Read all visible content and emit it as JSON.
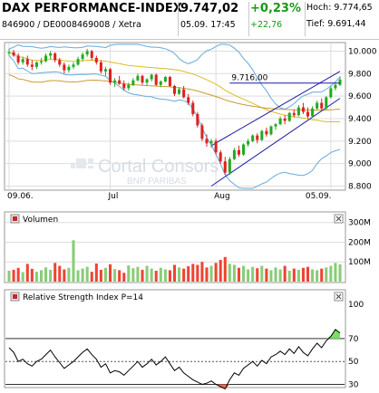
{
  "header": {
    "title": "DAX PERFORMANCE-INDEX",
    "subtitle": "846900 / DE0008469008 / Xetra",
    "price": "9.747,02",
    "datetime": "05.09. 17:45",
    "change_pct": "+0,23%",
    "change_abs": "+22,76",
    "high_label": "Hoch: 9.774,65",
    "low_label": "Tief: 9.691,44"
  },
  "watermark": {
    "brand": "Cortal Consors",
    "sub": "BNP PARIBAS"
  },
  "colors": {
    "up": "#22aa22",
    "down": "#dd2222",
    "volume_up": "#88cc77",
    "volume_down": "#ee4433",
    "bollinger": "#66aadd",
    "ma_short": "#ddbb22",
    "ma_long": "#cc9933",
    "channel": "#1a1aaa",
    "resistance": "#1a1aaa",
    "rsi_line": "#000000",
    "rsi_over": "#77dd66",
    "rsi_under": "#ee6655",
    "grid": "#dddddd"
  },
  "chart_data": [
    {
      "type": "candlestick",
      "title": "DAX PERFORMANCE-INDEX",
      "x_tick_labels": [
        "09.06.",
        "Jul",
        "Aug",
        "05.09."
      ],
      "y_tick_labels": [
        "10.000",
        "9.800",
        "9.600",
        "9.400",
        "9.200",
        "9.000",
        "8.800"
      ],
      "ylim": [
        8780,
        10060
      ],
      "annotation": "9.716,00",
      "resistance_level": 9716,
      "series": [
        {
          "name": "DAX",
          "ohlc": [
            [
              9980,
              10020,
              9960,
              9990
            ],
            [
              9990,
              10010,
              9950,
              9960
            ],
            [
              9960,
              9980,
              9880,
              9900
            ],
            [
              9900,
              9950,
              9880,
              9930
            ],
            [
              9930,
              9960,
              9860,
              9880
            ],
            [
              9880,
              9920,
              9830,
              9860
            ],
            [
              9860,
              9910,
              9840,
              9900
            ],
            [
              9900,
              9940,
              9880,
              9910
            ],
            [
              9910,
              9980,
              9900,
              9960
            ],
            [
              9960,
              10000,
              9930,
              9980
            ],
            [
              9980,
              9990,
              9900,
              9920
            ],
            [
              9920,
              9940,
              9860,
              9880
            ],
            [
              9880,
              9900,
              9800,
              9830
            ],
            [
              9830,
              9880,
              9810,
              9860
            ],
            [
              9860,
              9900,
              9840,
              9880
            ],
            [
              9880,
              9950,
              9870,
              9930
            ],
            [
              9930,
              9990,
              9910,
              9970
            ],
            [
              9970,
              10020,
              9950,
              10000
            ],
            [
              10000,
              10010,
              9920,
              9940
            ],
            [
              9940,
              9960,
              9880,
              9900
            ],
            [
              9900,
              9920,
              9800,
              9820
            ],
            [
              9820,
              9860,
              9780,
              9840
            ],
            [
              9840,
              9850,
              9700,
              9720
            ],
            [
              9720,
              9760,
              9680,
              9740
            ],
            [
              9740,
              9780,
              9700,
              9710
            ],
            [
              9710,
              9740,
              9650,
              9670
            ],
            [
              9670,
              9720,
              9650,
              9700
            ],
            [
              9700,
              9760,
              9690,
              9740
            ],
            [
              9740,
              9800,
              9730,
              9780
            ],
            [
              9780,
              9790,
              9700,
              9720
            ],
            [
              9720,
              9760,
              9690,
              9750
            ],
            [
              9750,
              9800,
              9730,
              9790
            ],
            [
              9790,
              9800,
              9690,
              9700
            ],
            [
              9700,
              9740,
              9680,
              9730
            ],
            [
              9730,
              9780,
              9720,
              9770
            ],
            [
              9770,
              9780,
              9680,
              9690
            ],
            [
              9690,
              9700,
              9600,
              9620
            ],
            [
              9620,
              9680,
              9610,
              9660
            ],
            [
              9660,
              9690,
              9580,
              9590
            ],
            [
              9590,
              9620,
              9520,
              9540
            ],
            [
              9540,
              9560,
              9420,
              9440
            ],
            [
              9440,
              9460,
              9320,
              9340
            ],
            [
              9340,
              9360,
              9200,
              9220
            ],
            [
              9220,
              9260,
              9150,
              9180
            ],
            [
              9180,
              9220,
              9140,
              9200
            ],
            [
              9200,
              9220,
              9080,
              9100
            ],
            [
              9100,
              9120,
              9000,
              9020
            ],
            [
              9020,
              9060,
              8900,
              8920
            ],
            [
              8920,
              9060,
              8900,
              9040
            ],
            [
              9040,
              9140,
              9030,
              9120
            ],
            [
              9120,
              9160,
              9060,
              9080
            ],
            [
              9080,
              9180,
              9070,
              9170
            ],
            [
              9170,
              9220,
              9150,
              9200
            ],
            [
              9200,
              9260,
              9190,
              9250
            ],
            [
              9250,
              9270,
              9180,
              9210
            ],
            [
              9210,
              9300,
              9200,
              9290
            ],
            [
              9290,
              9320,
              9240,
              9260
            ],
            [
              9260,
              9340,
              9250,
              9330
            ],
            [
              9330,
              9360,
              9300,
              9350
            ],
            [
              9350,
              9420,
              9340,
              9400
            ],
            [
              9400,
              9430,
              9350,
              9380
            ],
            [
              9380,
              9460,
              9370,
              9450
            ],
            [
              9450,
              9480,
              9410,
              9430
            ],
            [
              9430,
              9520,
              9420,
              9500
            ],
            [
              9500,
              9540,
              9440,
              9460
            ],
            [
              9460,
              9500,
              9400,
              9420
            ],
            [
              9420,
              9510,
              9410,
              9490
            ],
            [
              9490,
              9560,
              9480,
              9540
            ],
            [
              9540,
              9580,
              9470,
              9490
            ],
            [
              9490,
              9600,
              9480,
              9590
            ],
            [
              9590,
              9690,
              9580,
              9670
            ],
            [
              9670,
              9720,
              9650,
              9700
            ],
            [
              9700,
              9775,
              9690,
              9747
            ]
          ]
        },
        {
          "name": "Bollinger upper"
        },
        {
          "name": "Bollinger lower"
        },
        {
          "name": "MA short"
        },
        {
          "name": "MA long"
        }
      ]
    },
    {
      "type": "bar",
      "title": "Volumen",
      "y_tick_labels": [
        "300M",
        "200M",
        "100M"
      ],
      "ylim": [
        0,
        340
      ],
      "series": [
        {
          "name": "Volumen",
          "values": [
            55,
            60,
            70,
            48,
            90,
            65,
            50,
            58,
            72,
            60,
            95,
            80,
            62,
            70,
            210,
            58,
            66,
            75,
            50,
            92,
            60,
            70,
            88,
            64,
            58,
            45,
            82,
            68,
            75,
            60,
            80,
            66,
            55,
            70,
            62,
            58,
            85,
            72,
            66,
            78,
            90,
            85,
            100,
            72,
            80,
            95,
            110,
            125,
            90,
            85,
            70,
            80,
            62,
            75,
            68,
            80,
            66,
            58,
            72,
            62,
            80,
            55,
            66,
            60,
            70,
            75,
            62,
            58,
            66,
            72,
            80,
            95,
            88
          ]
        }
      ]
    },
    {
      "type": "line",
      "title": "Relative Strength Index P=14",
      "y_tick_labels": [
        "100",
        "70",
        "50",
        "30"
      ],
      "ylim": [
        28,
        100
      ],
      "levels": [
        70,
        50,
        30
      ],
      "series": [
        {
          "name": "Relative Strength Index P=14",
          "values": [
            62,
            58,
            50,
            52,
            48,
            46,
            50,
            52,
            56,
            60,
            54,
            49,
            44,
            47,
            50,
            54,
            58,
            61,
            56,
            52,
            45,
            48,
            40,
            42,
            41,
            38,
            42,
            46,
            50,
            45,
            48,
            52,
            47,
            50,
            54,
            48,
            42,
            45,
            40,
            37,
            34,
            32,
            30,
            31,
            33,
            30,
            28,
            26,
            34,
            40,
            38,
            44,
            47,
            50,
            46,
            51,
            48,
            54,
            56,
            59,
            56,
            61,
            57,
            63,
            58,
            55,
            61,
            66,
            62,
            68,
            72,
            78,
            75
          ]
        }
      ]
    }
  ]
}
